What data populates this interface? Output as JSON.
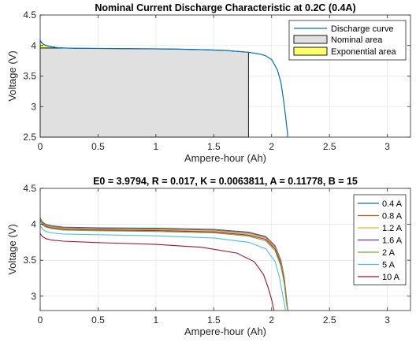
{
  "chart_data": [
    {
      "type": "area",
      "title": "Nominal Current Discharge Characteristic at 0.2C (0.4A)",
      "xlabel": "Ampere-hour (Ah)",
      "ylabel": "Voltage (V)",
      "xlim": [
        0,
        3.2
      ],
      "ylim": [
        2.5,
        4.5
      ],
      "xticks": [
        "0",
        "0.5",
        "1",
        "1.5",
        "2",
        "2.5",
        "3"
      ],
      "yticks": [
        "2.5",
        "3",
        "3.5",
        "4",
        "4.5"
      ],
      "grid": true,
      "legend_position": "top-right",
      "colors": {
        "discharge": "#0072bd",
        "nominal_area": "#e0e0e0",
        "exponential_area": "#ffff66"
      },
      "series": [
        {
          "name": "Discharge curve",
          "x": [
            0,
            0.02,
            0.05,
            0.1,
            0.15,
            0.2,
            0.3,
            0.5,
            0.8,
            1.0,
            1.2,
            1.4,
            1.6,
            1.8,
            1.9,
            1.95,
            2.0,
            2.05,
            2.08,
            2.1,
            2.12,
            2.135,
            2.14
          ],
          "y": [
            4.08,
            4.03,
            4.0,
            3.98,
            3.965,
            3.96,
            3.955,
            3.952,
            3.948,
            3.945,
            3.94,
            3.932,
            3.92,
            3.89,
            3.86,
            3.83,
            3.77,
            3.6,
            3.4,
            3.15,
            2.85,
            2.6,
            2.5
          ]
        },
        {
          "name": "Nominal area",
          "x": [
            0.2,
            0.3,
            0.5,
            0.8,
            1.0,
            1.2,
            1.4,
            1.6,
            1.8
          ],
          "y": [
            3.96,
            3.955,
            3.952,
            3.948,
            3.945,
            3.94,
            3.932,
            3.92,
            3.89
          ]
        },
        {
          "name": "Exponential area",
          "x": [
            0,
            0.02,
            0.05,
            0.1,
            0.15,
            0.2
          ],
          "y": [
            4.08,
            4.03,
            4.0,
            3.98,
            3.965,
            3.96
          ]
        }
      ]
    },
    {
      "type": "line",
      "title": "E0 = 3.9794, R = 0.017, K = 0.0063811, A = 0.11778, B = 15",
      "xlabel": "Ampere-hour (Ah)",
      "ylabel": "Voltage (V)",
      "xlim": [
        0,
        3.2
      ],
      "ylim": [
        2.8,
        4.5
      ],
      "xticks": [
        "0",
        "0.5",
        "1",
        "1.5",
        "2",
        "2.5",
        "3"
      ],
      "yticks": [
        "3",
        "3.5",
        "4",
        "4.5"
      ],
      "grid": true,
      "legend_position": "top-right",
      "series": [
        {
          "name": "0.4 A",
          "color": "#0072bd",
          "x": [
            0,
            0.02,
            0.05,
            0.1,
            0.2,
            0.5,
            1.0,
            1.5,
            1.8,
            1.95,
            2.03,
            2.08,
            2.11,
            2.13,
            2.14
          ],
          "y": [
            4.09,
            4.03,
            4.0,
            3.98,
            3.96,
            3.952,
            3.945,
            3.93,
            3.89,
            3.83,
            3.7,
            3.5,
            3.25,
            2.95,
            2.8
          ]
        },
        {
          "name": "0.8 A",
          "color": "#d95319",
          "x": [
            0,
            0.02,
            0.05,
            0.1,
            0.2,
            0.5,
            1.0,
            1.5,
            1.8,
            1.95,
            2.03,
            2.08,
            2.11,
            2.13,
            2.14
          ],
          "y": [
            4.08,
            4.02,
            3.99,
            3.97,
            3.95,
            3.942,
            3.935,
            3.92,
            3.88,
            3.82,
            3.69,
            3.49,
            3.24,
            2.94,
            2.8
          ]
        },
        {
          "name": "1.2 A",
          "color": "#edb120",
          "x": [
            0,
            0.02,
            0.05,
            0.1,
            0.2,
            0.5,
            1.0,
            1.5,
            1.8,
            1.95,
            2.03,
            2.08,
            2.11,
            2.13,
            2.14
          ],
          "y": [
            4.07,
            4.01,
            3.98,
            3.96,
            3.94,
            3.93,
            3.923,
            3.905,
            3.865,
            3.805,
            3.67,
            3.47,
            3.22,
            2.92,
            2.8
          ]
        },
        {
          "name": "1.6 A",
          "color": "#7e2f8e",
          "x": [
            0,
            0.02,
            0.05,
            0.1,
            0.2,
            0.5,
            1.0,
            1.5,
            1.8,
            1.95,
            2.03,
            2.08,
            2.11,
            2.13,
            2.14
          ],
          "y": [
            4.06,
            4.0,
            3.97,
            3.95,
            3.93,
            3.92,
            3.912,
            3.893,
            3.85,
            3.79,
            3.655,
            3.45,
            3.2,
            2.9,
            2.8
          ]
        },
        {
          "name": "2 A",
          "color": "#77ac30",
          "x": [
            0,
            0.02,
            0.05,
            0.1,
            0.2,
            0.5,
            1.0,
            1.5,
            1.8,
            1.95,
            2.03,
            2.08,
            2.11,
            2.13,
            2.14
          ],
          "y": [
            4.05,
            3.99,
            3.96,
            3.94,
            3.92,
            3.91,
            3.9,
            3.88,
            3.835,
            3.77,
            3.63,
            3.42,
            3.17,
            2.88,
            2.8
          ]
        },
        {
          "name": "5 A",
          "color": "#4dbeee",
          "x": [
            0,
            0.02,
            0.05,
            0.1,
            0.2,
            0.5,
            1.0,
            1.5,
            1.8,
            1.95,
            2.03,
            2.07,
            2.1,
            2.12
          ],
          "y": [
            3.98,
            3.93,
            3.9,
            3.88,
            3.865,
            3.855,
            3.84,
            3.81,
            3.75,
            3.66,
            3.48,
            3.25,
            2.98,
            2.8
          ]
        },
        {
          "name": "10 A",
          "color": "#a2142f",
          "x": [
            0,
            0.02,
            0.05,
            0.1,
            0.2,
            0.5,
            1.0,
            1.4,
            1.7,
            1.85,
            1.93,
            1.97,
            2.0,
            2.02
          ],
          "y": [
            3.87,
            3.83,
            3.8,
            3.78,
            3.765,
            3.745,
            3.72,
            3.68,
            3.6,
            3.48,
            3.3,
            3.12,
            2.95,
            2.8
          ]
        }
      ]
    }
  ]
}
